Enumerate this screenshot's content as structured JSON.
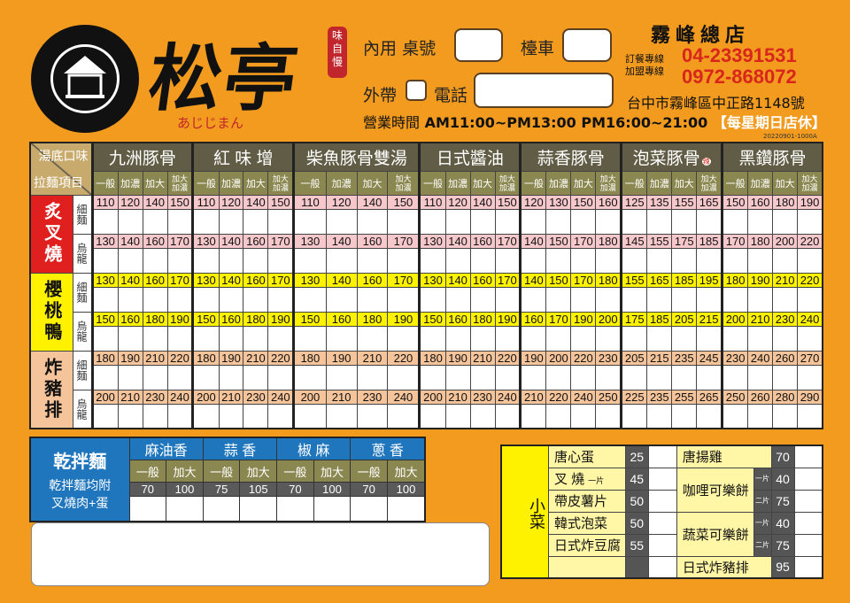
{
  "brand": {
    "name": "松亭",
    "subtitle": "あじじまん",
    "stamp": "味自慢"
  },
  "order": {
    "dine_in": "內用",
    "table_no": "桌號",
    "counter": "檯車",
    "takeout": "外帶",
    "phone": "電話"
  },
  "hours": {
    "label": "營業時間",
    "times": "AM11:00~PM13:00 PM16:00~21:00",
    "closed": "【每星期日店休】"
  },
  "store": {
    "name": "霧峰總店",
    "order_line_label": "訂餐專線",
    "order_line": "04-23391531",
    "franchise_label": "加盟專線",
    "franchise_line": "0972-868072",
    "address": "台中市霧峰區中正路1148號",
    "version": "20220901-1000A"
  },
  "main_table": {
    "corner_top": "湯底口味",
    "corner_bottom": "拉麵項目",
    "soups": [
      "九洲豚骨",
      "紅 味 增",
      "柴魚豚骨雙湯",
      "日式醬油",
      "蒜香豚骨",
      "泡菜豚骨",
      "黑鑽豚骨"
    ],
    "spicy_mark": "辣",
    "options": [
      "一般",
      "加濃",
      "加大",
      "加大加濃"
    ],
    "categories": [
      {
        "name": "炙叉燒",
        "color": "#e0201e",
        "text_color": "#ffffff",
        "price_color": "#f6c8cc",
        "rows": [
          {
            "noodle": "細麵",
            "prices": [
              [
                110,
                120,
                140,
                150
              ],
              [
                110,
                120,
                140,
                150
              ],
              [
                110,
                120,
                140,
                150
              ],
              [
                110,
                120,
                140,
                150
              ],
              [
                120,
                130,
                150,
                160
              ],
              [
                125,
                135,
                155,
                165
              ],
              [
                150,
                160,
                180,
                190
              ]
            ]
          },
          {
            "noodle": "烏龍",
            "prices": [
              [
                130,
                140,
                160,
                170
              ],
              [
                130,
                140,
                160,
                170
              ],
              [
                130,
                140,
                160,
                170
              ],
              [
                130,
                140,
                160,
                170
              ],
              [
                140,
                150,
                170,
                180
              ],
              [
                145,
                155,
                175,
                185
              ],
              [
                170,
                180,
                200,
                220
              ]
            ]
          }
        ]
      },
      {
        "name": "櫻桃鴨",
        "color": "#fff200",
        "text_color": "#111111",
        "price_color": "#fff200",
        "rows": [
          {
            "noodle": "細麵",
            "prices": [
              [
                130,
                140,
                160,
                170
              ],
              [
                130,
                140,
                160,
                170
              ],
              [
                130,
                140,
                160,
                170
              ],
              [
                130,
                140,
                160,
                170
              ],
              [
                140,
                150,
                170,
                180
              ],
              [
                155,
                165,
                185,
                195
              ],
              [
                180,
                190,
                210,
                220
              ]
            ]
          },
          {
            "noodle": "烏龍",
            "prices": [
              [
                150,
                160,
                180,
                190
              ],
              [
                150,
                160,
                180,
                190
              ],
              [
                150,
                160,
                180,
                190
              ],
              [
                150,
                160,
                180,
                190
              ],
              [
                160,
                170,
                190,
                200
              ],
              [
                175,
                185,
                205,
                215
              ],
              [
                200,
                210,
                230,
                240
              ]
            ]
          }
        ]
      },
      {
        "name": "炸豬排",
        "color": "#f5c49a",
        "text_color": "#111111",
        "price_color": "#f5c49a",
        "rows": [
          {
            "noodle": "細麵",
            "prices": [
              [
                180,
                190,
                210,
                220
              ],
              [
                180,
                190,
                210,
                220
              ],
              [
                180,
                190,
                210,
                220
              ],
              [
                180,
                190,
                210,
                220
              ],
              [
                190,
                200,
                220,
                230
              ],
              [
                205,
                215,
                235,
                245
              ],
              [
                230,
                240,
                260,
                270
              ]
            ]
          },
          {
            "noodle": "烏龍",
            "prices": [
              [
                200,
                210,
                230,
                240
              ],
              [
                200,
                210,
                230,
                240
              ],
              [
                200,
                210,
                230,
                240
              ],
              [
                200,
                210,
                230,
                240
              ],
              [
                210,
                220,
                240,
                250
              ],
              [
                225,
                235,
                255,
                265
              ],
              [
                250,
                260,
                280,
                290
              ]
            ]
          }
        ]
      }
    ]
  },
  "dry_noodles": {
    "title": "乾拌麵",
    "note1": "乾拌麵均附",
    "note2": "叉燒肉+蛋",
    "options": [
      "一般",
      "加大"
    ],
    "flavors": [
      {
        "name": "麻油香",
        "prices": [
          70,
          100
        ]
      },
      {
        "name": "蒜 香",
        "prices": [
          75,
          105
        ]
      },
      {
        "name": "椒 麻",
        "prices": [
          70,
          100
        ]
      },
      {
        "name": "蔥 香",
        "prices": [
          70,
          100
        ]
      }
    ]
  },
  "sides": {
    "label": "小菜",
    "left": [
      {
        "name": "唐心蛋",
        "price": 25
      },
      {
        "name": "叉 燒",
        "note": "一片",
        "price": 45
      },
      {
        "name": "帶皮薯片",
        "price": 50
      },
      {
        "name": "韓式泡菜",
        "price": 50
      },
      {
        "name": "日式炸豆腐",
        "price": 55
      }
    ],
    "right": [
      {
        "name": "唐揚雞",
        "price": 70
      },
      {
        "name": "咖哩可樂餅",
        "options": [
          {
            "label": "一片",
            "price": 40
          },
          {
            "label": "二片",
            "price": 75
          }
        ]
      },
      {
        "name": "蔬菜可樂餅",
        "options": [
          {
            "label": "一片",
            "price": 40
          },
          {
            "label": "二片",
            "price": 75
          }
        ]
      },
      {
        "name": "日式炸豬排",
        "price": 95
      }
    ]
  }
}
